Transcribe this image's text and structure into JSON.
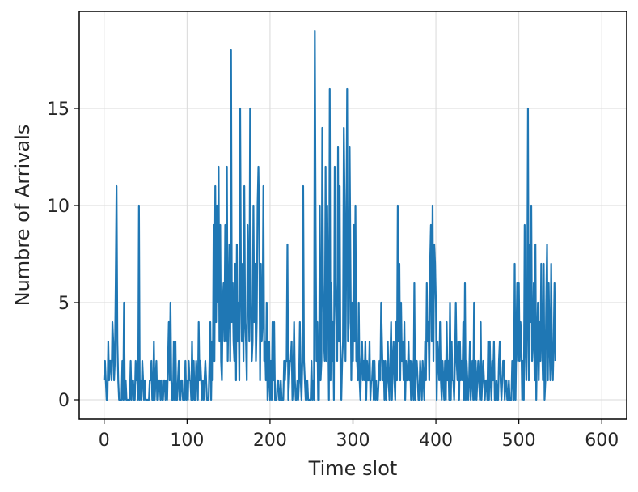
{
  "chart_data": {
    "type": "line",
    "title": "",
    "xlabel": "Time slot",
    "ylabel": "Numbre of Arrivals",
    "xlim": [
      -30,
      630
    ],
    "ylim": [
      -1,
      20
    ],
    "xticks": [
      0,
      100,
      200,
      300,
      400,
      500,
      600
    ],
    "yticks": [
      0,
      5,
      10,
      15
    ],
    "grid": true,
    "line_color": "#1f77b4",
    "series": [
      {
        "x_start": 0,
        "x_step": 1,
        "values": [
          1,
          2,
          1,
          0,
          0,
          3,
          1,
          2,
          2,
          1,
          4,
          3,
          1,
          2,
          6,
          11,
          3,
          1,
          0,
          0,
          0,
          0,
          2,
          0,
          5,
          0,
          1,
          0,
          0,
          0,
          0,
          0,
          2,
          0,
          1,
          1,
          0,
          0,
          2,
          1,
          1,
          0,
          10,
          0,
          1,
          0,
          2,
          1,
          0,
          1,
          0,
          0,
          0,
          0,
          0,
          1,
          1,
          2,
          0,
          0,
          3,
          0,
          1,
          2,
          0,
          0,
          1,
          1,
          0,
          1,
          0,
          0,
          1,
          1,
          0,
          1,
          0,
          2,
          4,
          1,
          5,
          1,
          0,
          0,
          3,
          0,
          3,
          0,
          0,
          1,
          2,
          0,
          0,
          1,
          1,
          0,
          0,
          0,
          2,
          0,
          1,
          0,
          2,
          1,
          1,
          0,
          3,
          0,
          2,
          0,
          0,
          2,
          1,
          0,
          4,
          1,
          2,
          1,
          0,
          1,
          0,
          1,
          2,
          1,
          0,
          0,
          0,
          2,
          4,
          0,
          3,
          1,
          9,
          2,
          11,
          4,
          10,
          5,
          12,
          3,
          9,
          2,
          1,
          5,
          6,
          3,
          9,
          3,
          12,
          2,
          5,
          8,
          2,
          18,
          4,
          6,
          3,
          2,
          7,
          1,
          8,
          3,
          5,
          1,
          15,
          6,
          3,
          7,
          2,
          11,
          4,
          3,
          1,
          9,
          6,
          3,
          15,
          5,
          2,
          3,
          10,
          4,
          7,
          2,
          4,
          10,
          12,
          9,
          1,
          7,
          3,
          4,
          11,
          2,
          3,
          1,
          5,
          0,
          1,
          3,
          0,
          2,
          0,
          4,
          1,
          4,
          0,
          0,
          0,
          1,
          1,
          0,
          0,
          1,
          0,
          0,
          0,
          2,
          1,
          2,
          2,
          8,
          0,
          1,
          2,
          2,
          3,
          0,
          1,
          4,
          1,
          0,
          0,
          1,
          0,
          1,
          4,
          1,
          0,
          2,
          11,
          2,
          1,
          0,
          0,
          1,
          0,
          0,
          0,
          0,
          2,
          0,
          1,
          0,
          19,
          9,
          2,
          4,
          0,
          0,
          10,
          1,
          2,
          14,
          6,
          3,
          2,
          12,
          2,
          10,
          5,
          0,
          16,
          1,
          6,
          2,
          4,
          0,
          12,
          6,
          4,
          2,
          13,
          3,
          11,
          1,
          0,
          2,
          3,
          14,
          10,
          2,
          8,
          16,
          3,
          4,
          13,
          7,
          1,
          5,
          2,
          9,
          3,
          10,
          2,
          2,
          1,
          5,
          1,
          0,
          2,
          3,
          1,
          2,
          1,
          3,
          0,
          2,
          1,
          1,
          3,
          0,
          1,
          1,
          2,
          0,
          2,
          0,
          1,
          0,
          0,
          1,
          2,
          1,
          5,
          3,
          1,
          2,
          0,
          2,
          0,
          1,
          3,
          1,
          0,
          2,
          4,
          0,
          2,
          3,
          1,
          0,
          4,
          1,
          10,
          3,
          7,
          1,
          5,
          2,
          3,
          1,
          4,
          0,
          2,
          1,
          1,
          3,
          1,
          2,
          0,
          2,
          1,
          0,
          6,
          0,
          2,
          2,
          1,
          0,
          0,
          2,
          1,
          0,
          2,
          1,
          0,
          3,
          1,
          6,
          3,
          4,
          1,
          7,
          9,
          3,
          10,
          2,
          8,
          7,
          5,
          0,
          3,
          2,
          1,
          4,
          1,
          0,
          2,
          1,
          0,
          2,
          0,
          4,
          1,
          2,
          0,
          5,
          0,
          3,
          1,
          1,
          0,
          2,
          5,
          2,
          1,
          3,
          0,
          3,
          1,
          2,
          1,
          4,
          0,
          6,
          0,
          2,
          1,
          0,
          1,
          3,
          0,
          1,
          2,
          0,
          5,
          0,
          2,
          0,
          1,
          2,
          1,
          0,
          4,
          0,
          1,
          2,
          1,
          0,
          1,
          1,
          0,
          3,
          0,
          3,
          1,
          0,
          2,
          1,
          3,
          0,
          0,
          1,
          0,
          0,
          2,
          3,
          1,
          0,
          1,
          2,
          2,
          0,
          1,
          1,
          0,
          0,
          1,
          0,
          0,
          0,
          2,
          1,
          0,
          7,
          0,
          3,
          6,
          2,
          6,
          2,
          4,
          3,
          0,
          2,
          0,
          9,
          3,
          1,
          4,
          15,
          1,
          8,
          4,
          10,
          2,
          3,
          6,
          1,
          8,
          0,
          3,
          5,
          1,
          4,
          2,
          7,
          3,
          1,
          7,
          0,
          1,
          5,
          8,
          1,
          6,
          3,
          1,
          7,
          2,
          1,
          3,
          6,
          2
        ],
        "note": ""
      }
    ]
  }
}
